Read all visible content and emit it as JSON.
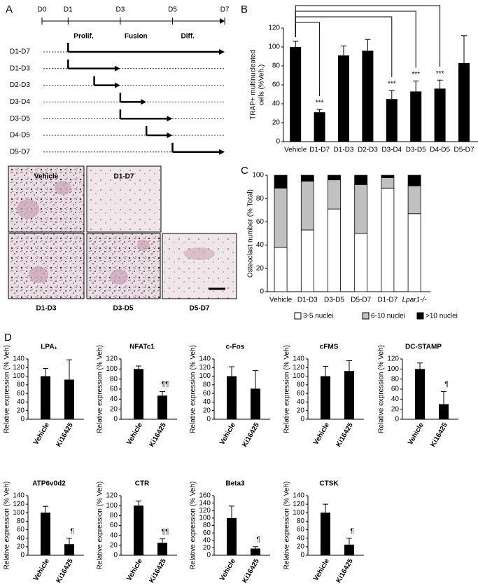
{
  "panel_labels": [
    "A",
    "B",
    "C",
    "D"
  ],
  "timeline": {
    "days": [
      "D0",
      "D1",
      "D3",
      "D5",
      "D7"
    ],
    "phases": [
      "Prolif.",
      "Fusion",
      "Diff."
    ],
    "rows": [
      "D1-D7",
      "D1-D3",
      "D2-D3",
      "D3-D4",
      "D3-D5",
      "D4-D5",
      "D5-D7"
    ]
  },
  "micrographs": [
    "Vehicle",
    "D1-D7",
    "D1-D3",
    "D3-D5",
    "D5-D7"
  ],
  "chart_data": [
    {
      "type": "bar",
      "ylabel": [
        "TRAP+ multinucleated",
        "cells (%Veh.)"
      ],
      "categories": [
        "Vehicle",
        "D1-D7",
        "D1-D3",
        "D2-D3",
        "D3-D4",
        "D3-D5",
        "D4-D5",
        "D5-D7"
      ],
      "values": [
        100,
        31,
        91,
        96,
        45,
        53,
        56,
        83
      ],
      "errors": [
        6,
        3,
        10,
        12,
        9,
        11,
        9,
        29
      ],
      "significance": [
        {
          "category": "D1-D7",
          "text": "***"
        },
        {
          "category": "D3-D4",
          "text": "***"
        },
        {
          "category": "D3-D5",
          "text": "***"
        },
        {
          "category": "D4-D5",
          "text": "***"
        }
      ],
      "color": "#000000",
      "ylim": [
        0,
        120
      ],
      "yticks": [
        0,
        20,
        40,
        60,
        80,
        100,
        120
      ]
    },
    {
      "type": "stacked_bar",
      "ylabel": "Osteoclast number (% Total)",
      "categories": [
        "Vehicle",
        "D1-D3",
        "D3-D5",
        "D5-D7",
        "D1-D7",
        "Lpar1-/-"
      ],
      "series": [
        {
          "name": "3-5 nuclei",
          "color": "#ffffff",
          "values": [
            38,
            53,
            71,
            50,
            89,
            67
          ]
        },
        {
          "name": "6-10 nuclei",
          "color": "#c0c0c0",
          "values": [
            51,
            42,
            25,
            42,
            9,
            24
          ]
        },
        {
          "name": ">10 nuclei",
          "color": "#000000",
          "values": [
            11,
            5,
            4,
            8,
            2,
            9
          ]
        }
      ],
      "ylim": [
        0,
        100
      ],
      "yticks": [
        0,
        20,
        40,
        60,
        80,
        100
      ],
      "legend": "bottom"
    },
    {
      "type": "bar",
      "title": "LPA₁",
      "ylabel": "Relative expression (% Veh)",
      "categories": [
        "Vehicle",
        "Ki16425"
      ],
      "values": [
        100,
        92
      ],
      "errors": [
        18,
        46
      ],
      "significance": [],
      "color": "#000000",
      "ylim": [
        0,
        140
      ],
      "yticks": [
        0,
        20,
        40,
        60,
        80,
        100,
        120,
        140
      ]
    },
    {
      "type": "bar",
      "title": "NFATc1",
      "ylabel": "Relative expression (% Veh)",
      "categories": [
        "Vehicle",
        "Ki16425"
      ],
      "values": [
        100,
        47
      ],
      "errors": [
        6,
        8
      ],
      "significance": [
        {
          "category": "Ki16425",
          "text": "¶¶"
        }
      ],
      "color": "#000000",
      "ylim": [
        0,
        120
      ],
      "yticks": [
        0,
        20,
        40,
        60,
        80,
        100,
        120
      ]
    },
    {
      "type": "bar",
      "title": "c-Fos",
      "ylabel": "Relative expression (% Veh)",
      "categories": [
        "Vehicle",
        "Ki16425"
      ],
      "values": [
        100,
        71
      ],
      "errors": [
        22,
        42
      ],
      "significance": [],
      "color": "#000000",
      "ylim": [
        0,
        140
      ],
      "yticks": [
        0,
        20,
        40,
        60,
        80,
        100,
        120,
        140
      ]
    },
    {
      "type": "bar",
      "title": "cFMS",
      "ylabel": "Relative expression (% Veh)",
      "categories": [
        "Vehicle",
        "Ki16425"
      ],
      "values": [
        100,
        112
      ],
      "errors": [
        23,
        24
      ],
      "significance": [],
      "color": "#000000",
      "ylim": [
        0,
        140
      ],
      "yticks": [
        0,
        20,
        40,
        60,
        80,
        100,
        120,
        140
      ]
    },
    {
      "type": "bar",
      "title": "DC-STAMP",
      "ylabel": "Relative expression (% Veh)",
      "categories": [
        "Vehicle",
        "Ki16425"
      ],
      "values": [
        100,
        30
      ],
      "errors": [
        12,
        25
      ],
      "significance": [
        {
          "category": "Ki16425",
          "text": "¶"
        }
      ],
      "color": "#000000",
      "ylim": [
        0,
        120
      ],
      "yticks": [
        0,
        20,
        40,
        60,
        80,
        100,
        120
      ]
    },
    {
      "type": "bar",
      "title": "ATP6v0d2",
      "ylabel": "Relative expression (% Veh)",
      "categories": [
        "Vehicle",
        "Ki16425"
      ],
      "values": [
        100,
        26
      ],
      "errors": [
        15,
        14
      ],
      "significance": [
        {
          "category": "Ki16425",
          "text": "¶"
        }
      ],
      "color": "#000000",
      "ylim": [
        0,
        140
      ],
      "yticks": [
        0,
        20,
        40,
        60,
        80,
        100,
        120,
        140
      ]
    },
    {
      "type": "bar",
      "title": "CTR",
      "ylabel": "Relative expression (% Veh)",
      "categories": [
        "Vehicle",
        "Ki16425"
      ],
      "values": [
        100,
        25
      ],
      "errors": [
        9,
        8
      ],
      "significance": [
        {
          "category": "Ki16425",
          "text": "¶¶"
        }
      ],
      "color": "#000000",
      "ylim": [
        0,
        120
      ],
      "yticks": [
        0,
        20,
        40,
        60,
        80,
        100,
        120
      ]
    },
    {
      "type": "bar",
      "title": "Beta3",
      "ylabel": "Relative expression (% Veh)",
      "categories": [
        "Vehicle",
        "Ki16425"
      ],
      "values": [
        100,
        18
      ],
      "errors": [
        32,
        5
      ],
      "significance": [
        {
          "category": "Ki16425",
          "text": "¶"
        }
      ],
      "color": "#000000",
      "ylim": [
        0,
        160
      ],
      "yticks": [
        0,
        20,
        40,
        60,
        80,
        100,
        120,
        140,
        160
      ]
    },
    {
      "type": "bar",
      "title": "CTSK",
      "ylabel": "Relative expression (% Veh)",
      "categories": [
        "Vehicle",
        "Ki16425"
      ],
      "values": [
        100,
        25
      ],
      "errors": [
        20,
        15
      ],
      "significance": [
        {
          "category": "Ki16425",
          "text": "¶"
        }
      ],
      "color": "#000000",
      "ylim": [
        0,
        140
      ],
      "yticks": [
        0,
        20,
        40,
        60,
        80,
        100,
        120,
        140
      ]
    }
  ]
}
